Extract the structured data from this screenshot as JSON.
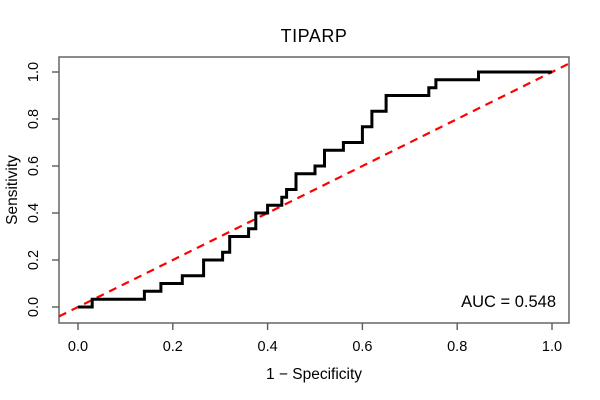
{
  "title": "TIPARP",
  "axes": {
    "x_label": "1 − Specificity",
    "y_label": "Sensitivity",
    "x_ticks": [
      "0.0",
      "0.2",
      "0.4",
      "0.6",
      "0.8",
      "1.0"
    ],
    "y_ticks": [
      "0.0",
      "0.2",
      "0.4",
      "0.6",
      "0.8",
      "1.0"
    ]
  },
  "annotation": {
    "auc_text": "AUC = 0.548"
  },
  "colors": {
    "curve": "#000000",
    "diagonal": "#ff0000",
    "frame": "#5a5a5a",
    "text": "#000000"
  },
  "chart_data": {
    "type": "line",
    "subtype": "roc-step-curve",
    "title": "TIPARP",
    "xlabel": "1 − Specificity",
    "ylabel": "Sensitivity",
    "xlim": [
      0,
      1
    ],
    "ylim": [
      0,
      1
    ],
    "grid": false,
    "auc": 0.548,
    "diagonal": {
      "from": [
        0,
        0
      ],
      "to": [
        1,
        1
      ],
      "style": "dashed",
      "color": "#ff0000"
    },
    "roc_points": [
      [
        0.0,
        0.0
      ],
      [
        0.03,
        0.0
      ],
      [
        0.03,
        0.033
      ],
      [
        0.14,
        0.033
      ],
      [
        0.14,
        0.067
      ],
      [
        0.175,
        0.067
      ],
      [
        0.175,
        0.1
      ],
      [
        0.22,
        0.1
      ],
      [
        0.22,
        0.133
      ],
      [
        0.265,
        0.133
      ],
      [
        0.265,
        0.2
      ],
      [
        0.305,
        0.2
      ],
      [
        0.305,
        0.233
      ],
      [
        0.32,
        0.233
      ],
      [
        0.32,
        0.3
      ],
      [
        0.36,
        0.3
      ],
      [
        0.36,
        0.333
      ],
      [
        0.375,
        0.333
      ],
      [
        0.375,
        0.4
      ],
      [
        0.4,
        0.4
      ],
      [
        0.4,
        0.433
      ],
      [
        0.43,
        0.433
      ],
      [
        0.43,
        0.467
      ],
      [
        0.44,
        0.467
      ],
      [
        0.44,
        0.5
      ],
      [
        0.46,
        0.5
      ],
      [
        0.46,
        0.567
      ],
      [
        0.5,
        0.567
      ],
      [
        0.5,
        0.6
      ],
      [
        0.52,
        0.6
      ],
      [
        0.52,
        0.667
      ],
      [
        0.56,
        0.667
      ],
      [
        0.56,
        0.7
      ],
      [
        0.6,
        0.7
      ],
      [
        0.6,
        0.767
      ],
      [
        0.62,
        0.767
      ],
      [
        0.62,
        0.833
      ],
      [
        0.65,
        0.833
      ],
      [
        0.65,
        0.9
      ],
      [
        0.74,
        0.9
      ],
      [
        0.74,
        0.933
      ],
      [
        0.755,
        0.933
      ],
      [
        0.755,
        0.967
      ],
      [
        0.845,
        0.967
      ],
      [
        0.845,
        1.0
      ],
      [
        1.0,
        1.0
      ]
    ]
  }
}
